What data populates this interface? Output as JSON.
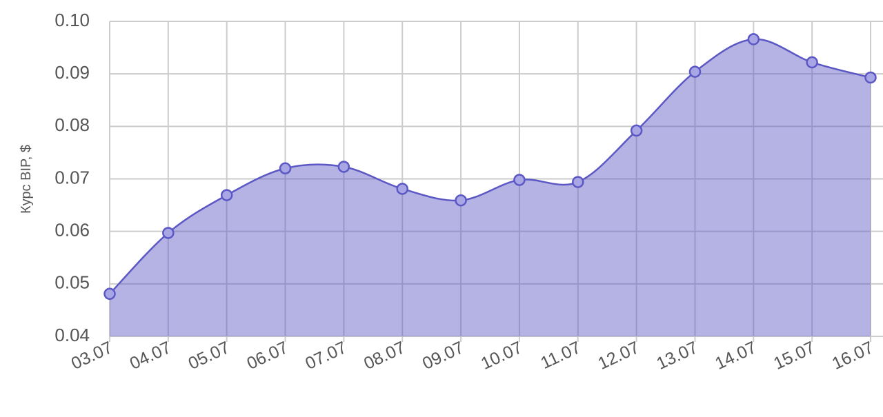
{
  "chart_data": {
    "type": "area",
    "y_label": "Курс BIP, $",
    "categories": [
      "03.07",
      "04.07",
      "05.07",
      "06.07",
      "07.07",
      "08.07",
      "09.07",
      "10.07",
      "11.07",
      "12.07",
      "13.07",
      "14.07",
      "15.07",
      "16.07"
    ],
    "series": [
      {
        "name": "BIP",
        "color": "#5b57c4",
        "values": [
          0.0481,
          0.0597,
          0.0669,
          0.072,
          0.0723,
          0.0681,
          0.0659,
          0.0698,
          0.0694,
          0.0792,
          0.0904,
          0.0966,
          0.0922,
          0.0893
        ]
      }
    ],
    "ylim": [
      0.04,
      0.1
    ],
    "yticks": [
      0.04,
      0.05,
      0.06,
      0.07,
      0.08,
      0.09,
      {
        "value": 0.1,
        "label": "0.10"
      }
    ],
    "grid": true
  }
}
